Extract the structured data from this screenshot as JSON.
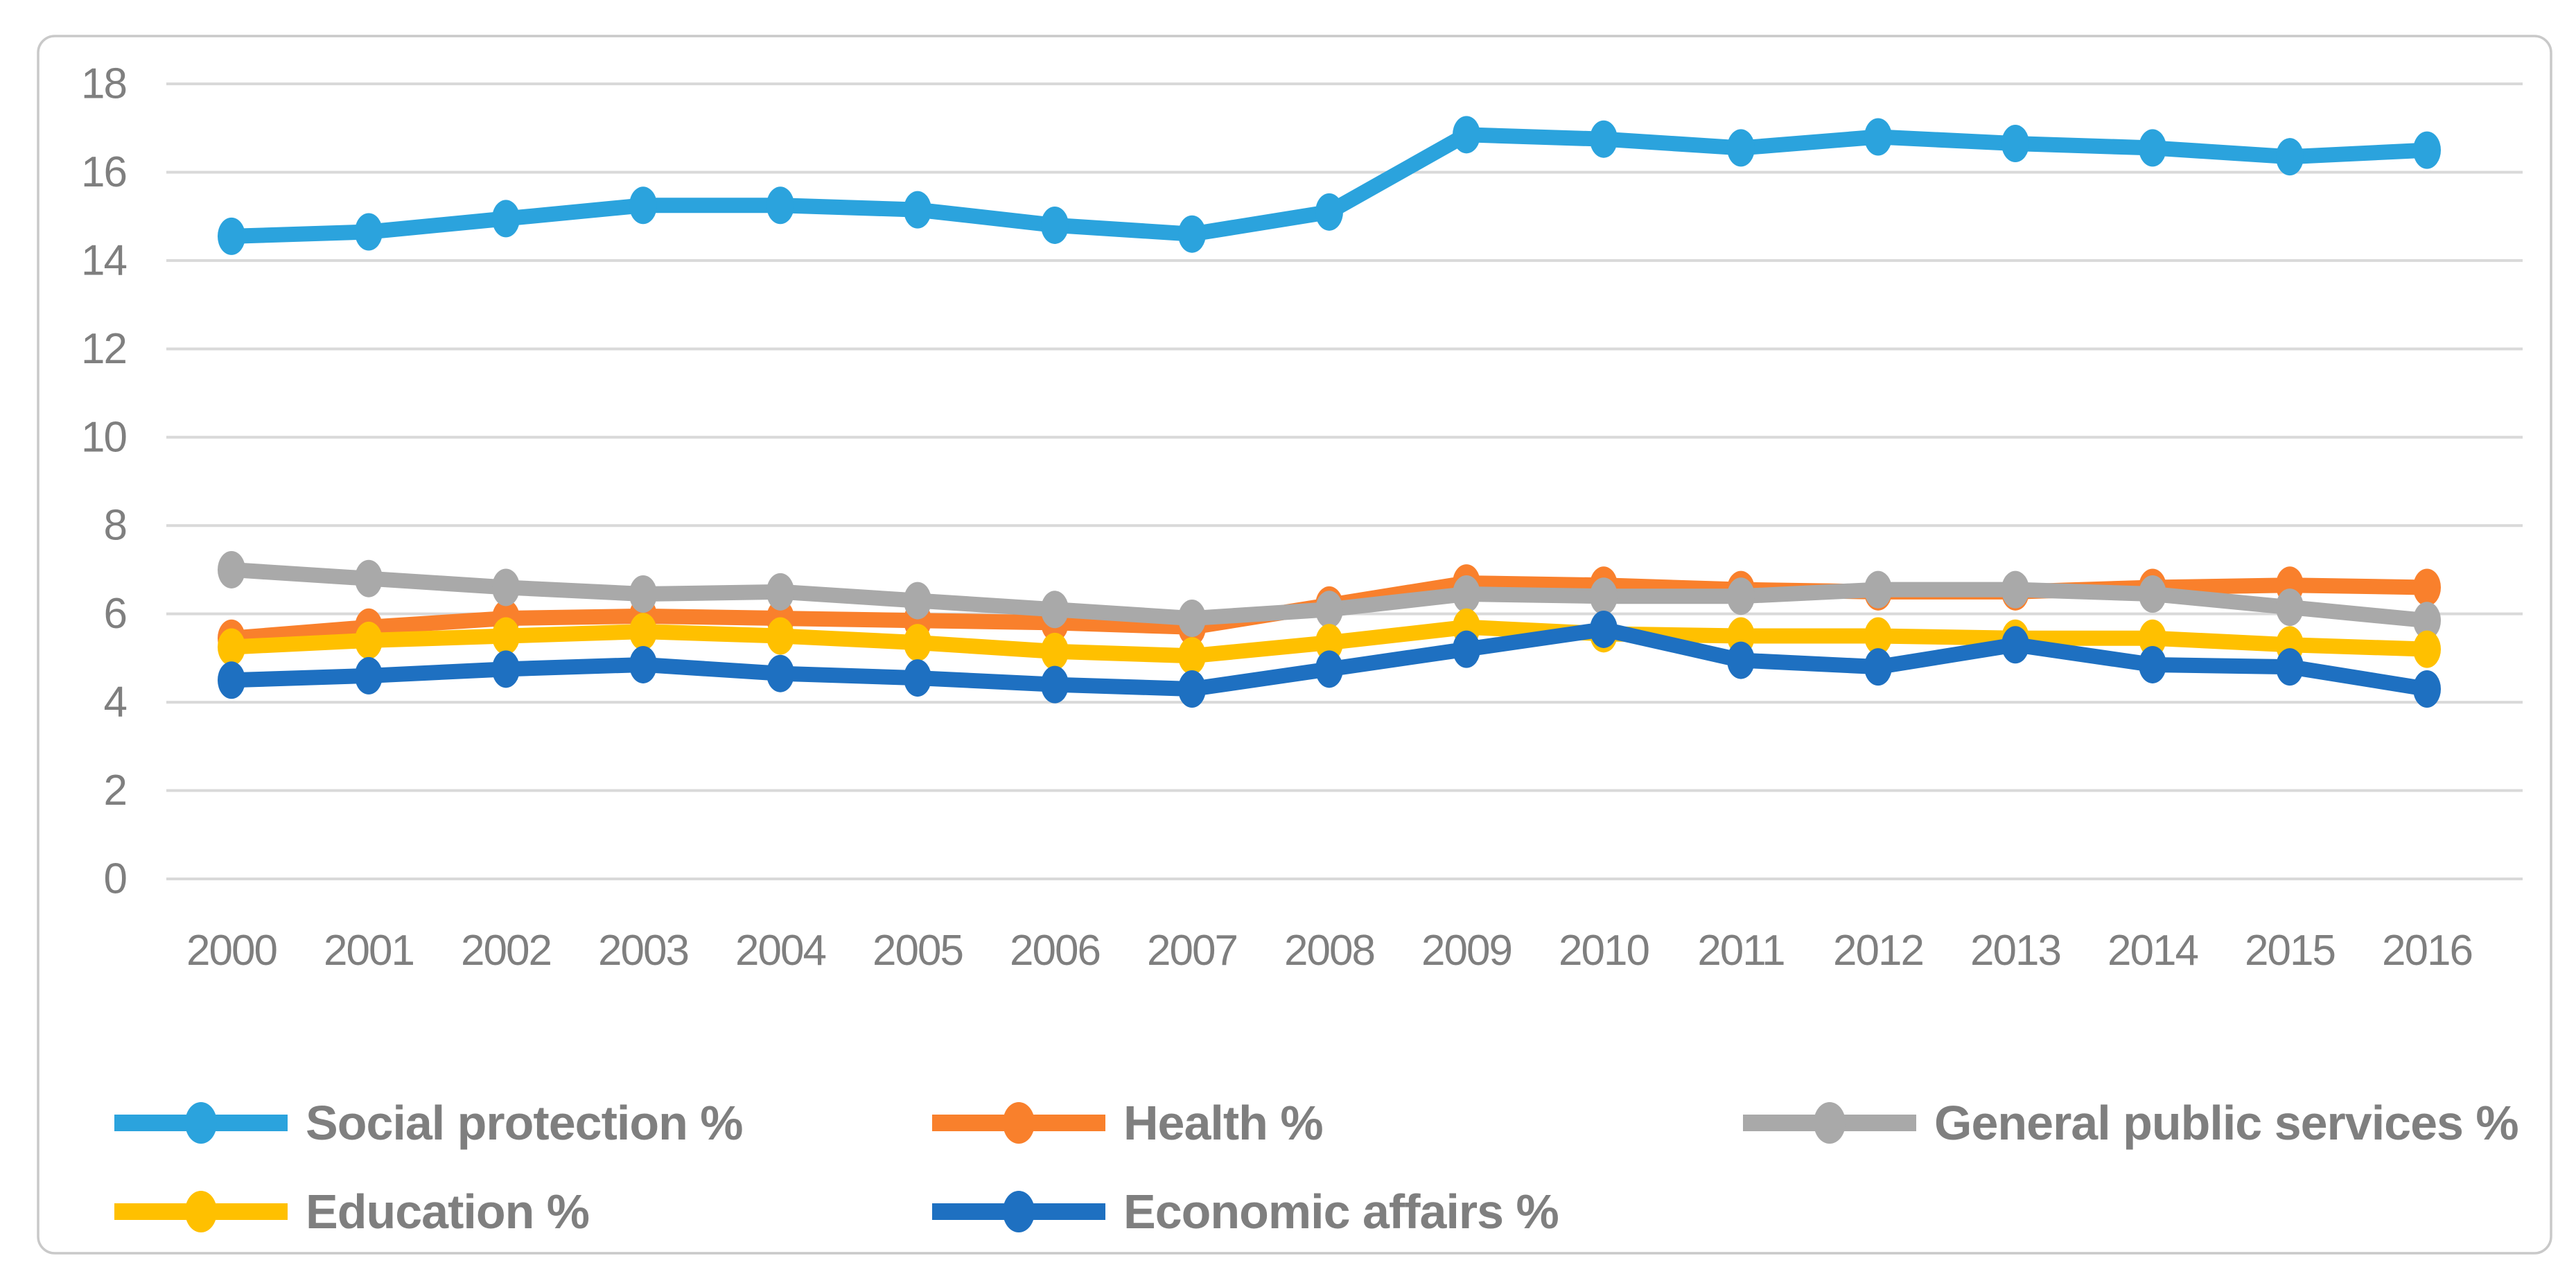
{
  "figure": {
    "background_color": "#FFFFFF",
    "border_color": "#C9C9C9",
    "axis_text_color": "#7F7F7F",
    "gridline_color": "#D9D9D9",
    "legend_text_color": "#7F7F7F"
  },
  "chart_data": {
    "type": "line",
    "title": "",
    "xlabel": "",
    "ylabel": "",
    "categories": [
      "2000",
      "2001",
      "2002",
      "2003",
      "2004",
      "2005",
      "2006",
      "2007",
      "2008",
      "2009",
      "2010",
      "2011",
      "2012",
      "2013",
      "2014",
      "2015",
      "2016"
    ],
    "y_ticks": [
      0,
      2,
      4,
      6,
      8,
      10,
      12,
      14,
      16,
      18
    ],
    "ylim": [
      0,
      18
    ],
    "grid": true,
    "legend_position": "bottom",
    "marker": "filled-circle",
    "series": [
      {
        "name": "Social protection %",
        "color": "#2BA3DD",
        "values": [
          14.55,
          14.65,
          14.95,
          15.25,
          15.25,
          15.15,
          14.8,
          14.6,
          15.1,
          16.85,
          16.75,
          16.55,
          16.8,
          16.65,
          16.55,
          16.35,
          16.5
        ]
      },
      {
        "name": "Health %",
        "color": "#F9802C",
        "values": [
          5.45,
          5.7,
          5.9,
          5.95,
          5.9,
          5.85,
          5.8,
          5.7,
          6.2,
          6.7,
          6.65,
          6.55,
          6.5,
          6.5,
          6.6,
          6.65,
          6.6
        ]
      },
      {
        "name": "General public services %",
        "color": "#A9A9A9",
        "values": [
          7.0,
          6.8,
          6.6,
          6.45,
          6.5,
          6.3,
          6.1,
          5.9,
          6.1,
          6.45,
          6.4,
          6.4,
          6.55,
          6.55,
          6.45,
          6.15,
          5.85
        ]
      },
      {
        "name": "Education %",
        "color": "#FFC000",
        "values": [
          5.25,
          5.4,
          5.5,
          5.6,
          5.5,
          5.35,
          5.15,
          5.05,
          5.35,
          5.7,
          5.55,
          5.5,
          5.5,
          5.45,
          5.45,
          5.3,
          5.2
        ]
      },
      {
        "name": "Economic affairs %",
        "color": "#1E70C1",
        "values": [
          4.5,
          4.6,
          4.75,
          4.85,
          4.65,
          4.55,
          4.4,
          4.3,
          4.75,
          5.2,
          5.65,
          4.95,
          4.8,
          5.3,
          4.85,
          4.8,
          4.3
        ]
      }
    ],
    "legend_rows": [
      [
        0,
        1,
        2
      ],
      [
        3,
        4
      ]
    ]
  }
}
